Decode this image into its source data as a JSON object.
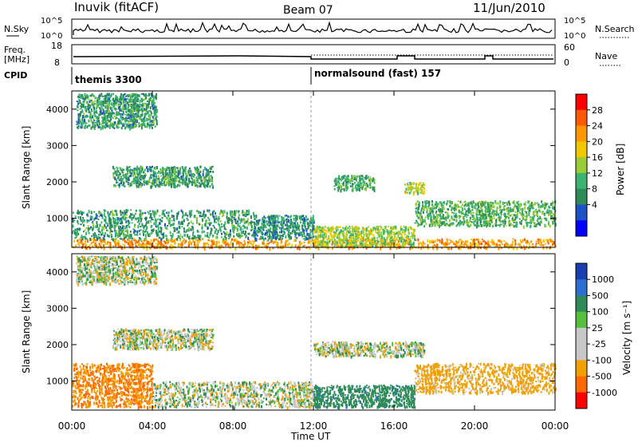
{
  "header": {
    "title": "Inuvik (fitACF)",
    "beam": "Beam 07",
    "date": "11/Jun/2010"
  },
  "nsky_panel": {
    "left_label": "N.Sky",
    "right_label": "N.Search",
    "left_ticks": [
      "10^5",
      "10^0"
    ],
    "right_ticks": [
      "10^5",
      "10^0"
    ]
  },
  "freq_panel": {
    "left_label_line1": "Freq.",
    "left_label_line2": "[MHz]",
    "left_ticks": [
      "18",
      "8"
    ],
    "right_label": "Nave",
    "right_ticks": [
      "60",
      "0"
    ]
  },
  "cpid": {
    "label": "CPID",
    "segments": [
      {
        "name": "themis 3300",
        "start_hour": 0,
        "end_hour": 12
      },
      {
        "name": "normalsound (fast) 157",
        "start_hour": 12,
        "end_hour": 24
      }
    ]
  },
  "power_panel": {
    "ylabel": "Slant Range [km]",
    "yticks": [
      "4000",
      "3000",
      "2000",
      "1000"
    ],
    "colorbar_label": "Power [dB]",
    "colorbar_ticks": [
      "28",
      "24",
      "20",
      "16",
      "12",
      "8",
      "4"
    ],
    "colorbar_colors": [
      "#ff0000",
      "#ff5a00",
      "#ff9800",
      "#f0c800",
      "#9acd32",
      "#3cb371",
      "#2e8b57",
      "#1e50c8",
      "#0000ff"
    ]
  },
  "velocity_panel": {
    "ylabel": "Slant Range [km]",
    "yticks": [
      "4000",
      "3000",
      "2000",
      "1000"
    ],
    "colorbar_label": "Velocity [m s⁻¹]",
    "colorbar_ticks": [
      "1000",
      "500",
      "100",
      "25",
      "-25",
      "-100",
      "-500",
      "-1000"
    ],
    "colorbar_colors": [
      "#1a3fb0",
      "#2c6fd0",
      "#2e8b57",
      "#55c040",
      "#c8c8c8",
      "#c8c8c8",
      "#f0a000",
      "#ff6a00",
      "#ff0000"
    ]
  },
  "xaxis": {
    "label": "Time UT",
    "ticks": [
      "00:00",
      "04:00",
      "08:00",
      "12:00",
      "16:00",
      "20:00",
      "00:00"
    ]
  },
  "chart_data": {
    "type": "heatmap",
    "x_unit": "hours UT",
    "xlim": [
      0,
      24
    ],
    "ylim": [
      200,
      4500
    ],
    "power_regions": [
      {
        "t0": 0,
        "t1": 24,
        "r0": 200,
        "r1": 450,
        "level": 24
      },
      {
        "t0": 0,
        "t1": 9,
        "r0": 450,
        "r1": 1250,
        "level": 10
      },
      {
        "t0": 9,
        "t1": 12,
        "r0": 450,
        "r1": 1100,
        "level": 9
      },
      {
        "t0": 12,
        "t1": 17,
        "r0": 250,
        "r1": 800,
        "level": 16
      },
      {
        "t0": 17,
        "t1": 24,
        "r0": 800,
        "r1": 1500,
        "level": 12
      },
      {
        "t0": 2,
        "t1": 7,
        "r0": 1900,
        "r1": 2450,
        "level": 10
      },
      {
        "t0": 13,
        "t1": 15,
        "r0": 1800,
        "r1": 2200,
        "level": 11
      },
      {
        "t0": 16.5,
        "t1": 17.5,
        "r0": 1700,
        "r1": 2000,
        "level": 18
      },
      {
        "t0": 0.2,
        "t1": 4.2,
        "r0": 3500,
        "r1": 4450,
        "level": 10
      }
    ],
    "velocity_regions": [
      {
        "t0": 0,
        "t1": 4,
        "r0": 300,
        "r1": 1500,
        "value": -300
      },
      {
        "t0": 4,
        "t1": 12,
        "r0": 300,
        "r1": 1000,
        "value": 0
      },
      {
        "t0": 12,
        "t1": 17,
        "r0": 300,
        "r1": 900,
        "value": 200
      },
      {
        "t0": 17,
        "t1": 24,
        "r0": 700,
        "r1": 1500,
        "value": -150
      },
      {
        "t0": 2,
        "t1": 7,
        "r0": 1900,
        "r1": 2450,
        "value": 0
      },
      {
        "t0": 12,
        "t1": 17.5,
        "r0": 1700,
        "r1": 2100,
        "value": 0
      },
      {
        "t0": 0.2,
        "t1": 4.2,
        "r0": 3700,
        "r1": 4450,
        "value": 0
      }
    ]
  }
}
